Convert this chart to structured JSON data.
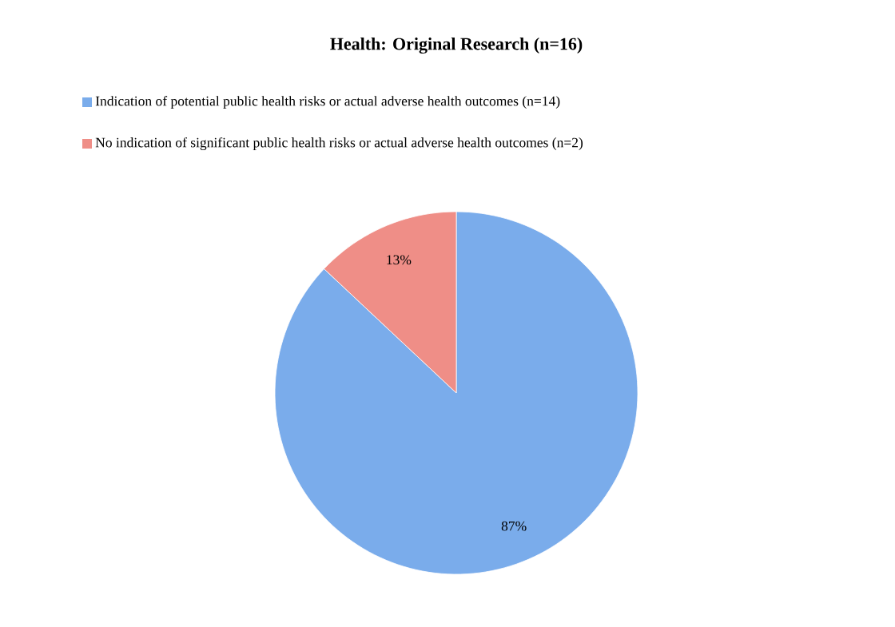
{
  "chart_data": {
    "type": "pie",
    "title": "Health: Original Research (n=16)",
    "categories": [
      "Indication of potential public health risks or actual adverse health outcomes (n=14)",
      "No indication of significant public health risks or actual adverse health outcomes (n=2)"
    ],
    "values": [
      87,
      13
    ],
    "colors": [
      "#7aaceb",
      "#ef8e87"
    ],
    "value_labels": [
      "87%",
      "13%"
    ],
    "legend": "top"
  }
}
